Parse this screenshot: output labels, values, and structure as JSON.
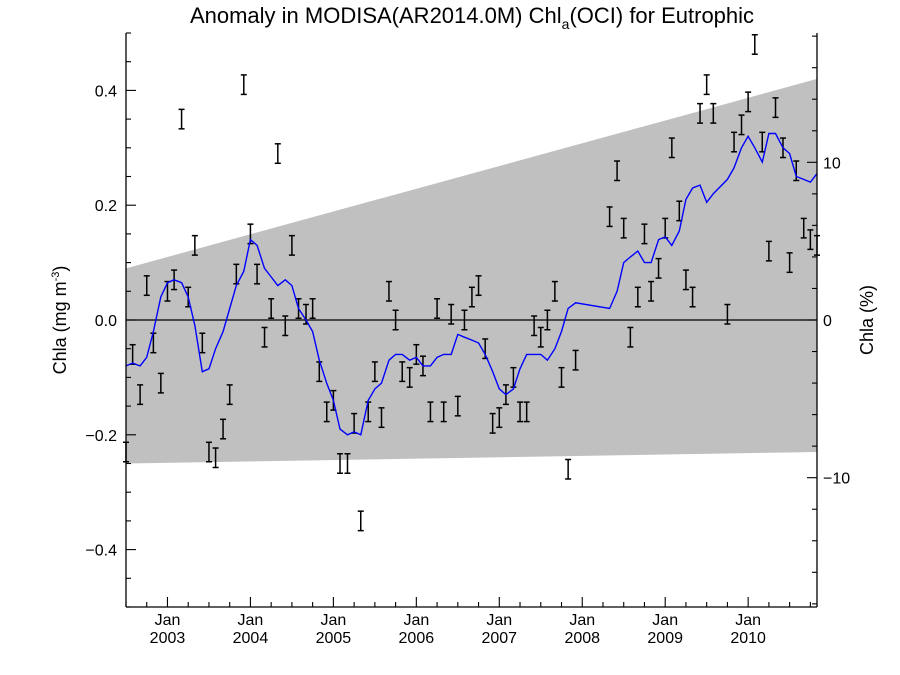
{
  "chart_data": {
    "type": "line",
    "title": {
      "prefix": "Anomaly in MODISA(AR2014.0M) Chl",
      "subscript": "a",
      "suffix": "(OCI) for Eutrophic"
    },
    "ylabel": {
      "prefix": "Chla (mg m",
      "superscript": "-3",
      "suffix": ")"
    },
    "y2label": "Chla (%)",
    "xlim": [
      2002.5,
      2010.83
    ],
    "ylim": [
      -0.5,
      0.5
    ],
    "y2lim": [
      -18.2,
      18.2
    ],
    "yticks": [
      -0.4,
      -0.2,
      0.0,
      0.2,
      0.4
    ],
    "ytick_labels": [
      "−0.4",
      "−0.2",
      "0.0",
      "0.2",
      "0.4"
    ],
    "y2ticks": [
      -10,
      0,
      10
    ],
    "y2tick_labels": [
      "−10",
      "0",
      "10"
    ],
    "xticks": [
      {
        "pos": 2003,
        "month": "Jan",
        "year": "2003"
      },
      {
        "pos": 2004,
        "month": "Jan",
        "year": "2004"
      },
      {
        "pos": 2005,
        "month": "Jan",
        "year": "2005"
      },
      {
        "pos": 2006,
        "month": "Jan",
        "year": "2006"
      },
      {
        "pos": 2007,
        "month": "Jan",
        "year": "2007"
      },
      {
        "pos": 2008,
        "month": "Jan",
        "year": "2008"
      },
      {
        "pos": 2009,
        "month": "Jan",
        "year": "2009"
      },
      {
        "pos": 2010,
        "month": "Jan",
        "year": "2010"
      }
    ],
    "zero_line": 0.0,
    "band": {
      "x": [
        2002.5,
        2010.83
      ],
      "upper": [
        0.09,
        0.42
      ],
      "lower": [
        -0.25,
        -0.23
      ],
      "color": "#c0c0c0"
    },
    "series": [
      {
        "kind": "points_with_errorbars",
        "color": "#000000",
        "x": [
          2002.5,
          2002.58,
          2002.67,
          2002.75,
          2002.83,
          2002.92,
          2003.0,
          2003.08,
          2003.17,
          2003.25,
          2003.33,
          2003.42,
          2003.5,
          2003.58,
          2003.67,
          2003.75,
          2003.83,
          2003.92,
          2004.0,
          2004.08,
          2004.17,
          2004.25,
          2004.33,
          2004.42,
          2004.5,
          2004.58,
          2004.67,
          2004.75,
          2004.83,
          2004.92,
          2005.0,
          2005.08,
          2005.17,
          2005.25,
          2005.33,
          2005.42,
          2005.5,
          2005.58,
          2005.67,
          2005.75,
          2005.83,
          2005.92,
          2006.0,
          2006.08,
          2006.17,
          2006.25,
          2006.33,
          2006.42,
          2006.5,
          2006.58,
          2006.67,
          2006.75,
          2006.83,
          2006.92,
          2007.0,
          2007.08,
          2007.17,
          2007.25,
          2007.33,
          2007.42,
          2007.5,
          2007.58,
          2007.67,
          2007.75,
          2007.83,
          2007.92,
          2008.33,
          2008.42,
          2008.5,
          2008.58,
          2008.67,
          2008.75,
          2008.83,
          2008.92,
          2009.0,
          2009.08,
          2009.17,
          2009.25,
          2009.33,
          2009.42,
          2009.5,
          2009.58,
          2009.75,
          2009.83,
          2009.92,
          2010.0,
          2010.08,
          2010.17,
          2010.25,
          2010.33,
          2010.42,
          2010.5,
          2010.58,
          2010.67,
          2010.75,
          2010.83
        ],
        "y": [
          -0.23,
          -0.06,
          -0.13,
          0.06,
          -0.04,
          -0.11,
          0.05,
          0.07,
          0.35,
          0.04,
          0.13,
          -0.04,
          -0.23,
          -0.24,
          -0.19,
          -0.13,
          0.08,
          0.41,
          0.15,
          0.08,
          -0.03,
          0.02,
          0.29,
          -0.01,
          0.13,
          0.02,
          0.01,
          0.02,
          -0.09,
          -0.16,
          -0.14,
          -0.25,
          -0.25,
          -0.18,
          -0.35,
          -0.16,
          -0.09,
          -0.17,
          0.05,
          0.0,
          -0.09,
          -0.1,
          -0.06,
          -0.08,
          -0.16,
          0.02,
          -0.16,
          0.01,
          -0.15,
          0.0,
          0.04,
          0.06,
          -0.05,
          -0.18,
          -0.17,
          -0.13,
          -0.1,
          -0.16,
          -0.16,
          -0.01,
          -0.03,
          0.0,
          0.05,
          -0.1,
          -0.26,
          -0.07,
          0.18,
          0.26,
          0.16,
          -0.03,
          0.04,
          0.15,
          0.05,
          0.09,
          0.16,
          0.3,
          0.19,
          0.07,
          0.04,
          0.36,
          0.41,
          0.36,
          0.01,
          0.31,
          0.34,
          0.38,
          0.48,
          0.31,
          0.12,
          0.37,
          0.3,
          0.1,
          0.26,
          0.16,
          0.14,
          0.13
        ],
        "err": 0.01
      },
      {
        "kind": "line",
        "color": "#0000ff",
        "x": [
          2002.5,
          2002.58,
          2002.67,
          2002.75,
          2002.83,
          2002.92,
          2003.0,
          2003.08,
          2003.17,
          2003.25,
          2003.33,
          2003.42,
          2003.5,
          2003.58,
          2003.67,
          2003.75,
          2003.83,
          2003.92,
          2004.0,
          2004.08,
          2004.17,
          2004.25,
          2004.33,
          2004.42,
          2004.5,
          2004.58,
          2004.67,
          2004.75,
          2004.83,
          2004.92,
          2005.0,
          2005.08,
          2005.17,
          2005.25,
          2005.33,
          2005.42,
          2005.5,
          2005.58,
          2005.67,
          2005.75,
          2005.83,
          2005.92,
          2006.0,
          2006.08,
          2006.17,
          2006.25,
          2006.33,
          2006.42,
          2006.5,
          2006.58,
          2006.67,
          2006.75,
          2006.83,
          2006.92,
          2007.0,
          2007.08,
          2007.17,
          2007.25,
          2007.33,
          2007.42,
          2007.5,
          2007.58,
          2007.67,
          2007.75,
          2007.83,
          2007.92,
          2008.33,
          2008.42,
          2008.5,
          2008.58,
          2008.67,
          2008.75,
          2008.83,
          2008.92,
          2009.0,
          2009.08,
          2009.17,
          2009.25,
          2009.33,
          2009.42,
          2009.5,
          2009.58,
          2009.75,
          2009.83,
          2009.92,
          2010.0,
          2010.08,
          2010.17,
          2010.25,
          2010.33,
          2010.42,
          2010.5,
          2010.58,
          2010.67,
          2010.75,
          2010.83
        ],
        "y": [
          -0.08,
          -0.075,
          -0.08,
          -0.065,
          -0.02,
          0.04,
          0.065,
          0.07,
          0.065,
          0.04,
          -0.01,
          -0.09,
          -0.085,
          -0.05,
          -0.02,
          0.02,
          0.06,
          0.085,
          0.14,
          0.13,
          0.09,
          0.075,
          0.06,
          0.07,
          0.06,
          0.02,
          0.0,
          -0.02,
          -0.07,
          -0.11,
          -0.14,
          -0.19,
          -0.2,
          -0.195,
          -0.2,
          -0.14,
          -0.12,
          -0.11,
          -0.07,
          -0.06,
          -0.06,
          -0.07,
          -0.065,
          -0.08,
          -0.08,
          -0.065,
          -0.06,
          -0.06,
          -0.025,
          -0.03,
          -0.035,
          -0.04,
          -0.06,
          -0.09,
          -0.12,
          -0.13,
          -0.12,
          -0.085,
          -0.06,
          -0.06,
          -0.06,
          -0.07,
          -0.05,
          -0.02,
          0.02,
          0.03,
          0.02,
          0.05,
          0.1,
          0.11,
          0.12,
          0.1,
          0.1,
          0.14,
          0.145,
          0.13,
          0.155,
          0.21,
          0.23,
          0.235,
          0.205,
          0.22,
          0.245,
          0.265,
          0.3,
          0.32,
          0.3,
          0.275,
          0.325,
          0.325,
          0.3,
          0.29,
          0.25,
          0.245,
          0.24,
          0.255
        ]
      }
    ]
  }
}
